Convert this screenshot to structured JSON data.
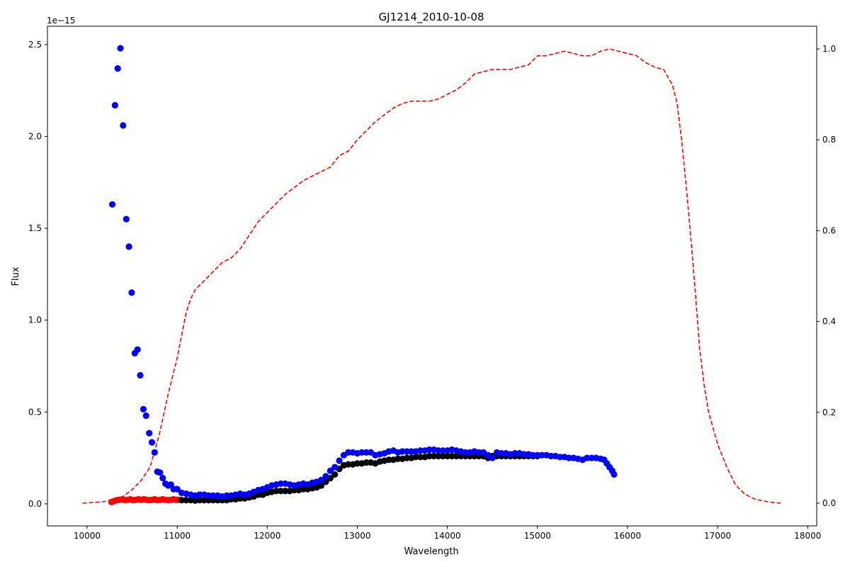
{
  "chart_data": {
    "type": "scatter",
    "title": "GJ1214_2010-10-08",
    "xlabel": "Wavelength",
    "ylabel": "Flux",
    "y_offset_text": "1e−15",
    "xlim": [
      9560,
      18100
    ],
    "ylim": [
      -0.12,
      2.6
    ],
    "y2lim": [
      -0.05,
      1.05
    ],
    "grid": false,
    "x_ticks": [
      {
        "value": 10000,
        "label": "10000"
      },
      {
        "value": 11000,
        "label": "11000"
      },
      {
        "value": 12000,
        "label": "12000"
      },
      {
        "value": 13000,
        "label": "13000"
      },
      {
        "value": 14000,
        "label": "14000"
      },
      {
        "value": 15000,
        "label": "15000"
      },
      {
        "value": 16000,
        "label": "16000"
      },
      {
        "value": 17000,
        "label": "17000"
      },
      {
        "value": 18000,
        "label": "18000"
      }
    ],
    "y_ticks": [
      {
        "value": 0.0,
        "label": "0.0"
      },
      {
        "value": 0.5,
        "label": "0.5"
      },
      {
        "value": 1.0,
        "label": "1.0"
      },
      {
        "value": 1.5,
        "label": "1.5"
      },
      {
        "value": 2.0,
        "label": "2.0"
      },
      {
        "value": 2.5,
        "label": "2.5"
      }
    ],
    "y2_ticks": [
      {
        "value": 0.0,
        "label": "0.0"
      },
      {
        "value": 0.2,
        "label": "0.2"
      },
      {
        "value": 0.4,
        "label": "0.4"
      },
      {
        "value": 0.6,
        "label": "0.6"
      },
      {
        "value": 0.8,
        "label": "0.8"
      },
      {
        "value": 1.0,
        "label": "1.0"
      }
    ],
    "colors": {
      "blue": "#0000ff",
      "black": "#000000",
      "red": "#ff0000",
      "curve": "#ff0000"
    },
    "series": [
      {
        "color": "#ff0000",
        "marker": "circle",
        "x": [
          10270,
          10300,
          10330,
          10360,
          10390,
          10420,
          10450,
          10480,
          10510,
          10540,
          10570,
          10600,
          10630,
          10660,
          10690,
          10720,
          10750,
          10780,
          10810,
          10840,
          10870,
          10900,
          10930,
          10960,
          10990,
          11020
        ],
        "y": [
          0.01,
          0.015,
          0.02,
          0.022,
          0.025,
          0.02,
          0.022,
          0.025,
          0.02,
          0.022,
          0.025,
          0.022,
          0.025,
          0.022,
          0.02,
          0.022,
          0.025,
          0.02,
          0.022,
          0.025,
          0.022,
          0.02,
          0.022,
          0.025,
          0.022,
          0.022
        ]
      },
      {
        "color": "#000000",
        "marker": "circle",
        "x": [
          11050,
          11100,
          11150,
          11200,
          11250,
          11300,
          11350,
          11400,
          11450,
          11500,
          11550,
          11600,
          11650,
          11700,
          11750,
          11800,
          11850,
          11900,
          11950,
          12000,
          12050,
          12100,
          12150,
          12200,
          12250,
          12300,
          12350,
          12400,
          12450,
          12500,
          12550,
          12600,
          12650,
          12700,
          12750,
          12800,
          12850,
          12900,
          12950,
          13000,
          13050,
          13100,
          13150,
          13200,
          13250,
          13300,
          13350,
          13400,
          13450,
          13500,
          13550,
          13600,
          13650,
          13700,
          13750,
          13800,
          13850,
          13900,
          13950,
          14000,
          14050,
          14100,
          14150,
          14200,
          14250,
          14300,
          14350,
          14400,
          14450,
          14500,
          14550,
          14600,
          14650,
          14700,
          14750,
          14800,
          14850,
          14900,
          14950,
          15000
        ],
        "y": [
          0.02,
          0.02,
          0.02,
          0.018,
          0.02,
          0.02,
          0.02,
          0.02,
          0.02,
          0.02,
          0.02,
          0.025,
          0.025,
          0.03,
          0.03,
          0.035,
          0.04,
          0.05,
          0.05,
          0.06,
          0.065,
          0.07,
          0.07,
          0.07,
          0.07,
          0.075,
          0.075,
          0.08,
          0.08,
          0.085,
          0.09,
          0.1,
          0.12,
          0.14,
          0.16,
          0.19,
          0.21,
          0.215,
          0.215,
          0.22,
          0.22,
          0.225,
          0.225,
          0.22,
          0.23,
          0.235,
          0.24,
          0.24,
          0.245,
          0.245,
          0.25,
          0.25,
          0.255,
          0.255,
          0.255,
          0.26,
          0.26,
          0.26,
          0.26,
          0.26,
          0.26,
          0.26,
          0.26,
          0.26,
          0.26,
          0.26,
          0.26,
          0.26,
          0.25,
          0.26,
          0.26,
          0.26,
          0.26,
          0.26,
          0.26,
          0.26,
          0.26,
          0.26,
          0.26,
          0.26
        ]
      },
      {
        "color": "#0000ff",
        "marker": "circle",
        "x": [
          10280,
          10310,
          10340,
          10370,
          10400,
          10435,
          10465,
          10495,
          10530,
          10560,
          10590,
          10625,
          10655,
          10690,
          10720,
          10750,
          10780,
          10810,
          10840,
          10870,
          10900,
          10930,
          10960,
          11000,
          11050,
          11100,
          11150,
          11200,
          11250,
          11300,
          11350,
          11400,
          11450,
          11500,
          11550,
          11600,
          11650,
          11700,
          11750,
          11800,
          11850,
          11900,
          11950,
          12000,
          12050,
          12100,
          12150,
          12200,
          12250,
          12300,
          12350,
          12400,
          12450,
          12500,
          12550,
          12600,
          12650,
          12700,
          12750,
          12800,
          12850,
          12900,
          12950,
          13000,
          13050,
          13100,
          13150,
          13200,
          13250,
          13300,
          13350,
          13400,
          13450,
          13500,
          13550,
          13600,
          13650,
          13700,
          13750,
          13800,
          13850,
          13900,
          13950,
          14000,
          14050,
          14100,
          14150,
          14200,
          14250,
          14300,
          14350,
          14400,
          14450,
          14500,
          14550,
          14600,
          14650,
          14700,
          14750,
          14800,
          14850,
          14900,
          14950,
          15000,
          15050,
          15100,
          15150,
          15200,
          15250,
          15300,
          15350,
          15400,
          15450,
          15500,
          15550,
          15600,
          15650,
          15700,
          15740,
          15770,
          15800,
          15830,
          15850
        ],
        "y": [
          1.63,
          2.17,
          2.37,
          2.48,
          2.06,
          1.55,
          1.4,
          1.15,
          0.82,
          0.84,
          0.7,
          0.515,
          0.48,
          0.385,
          0.335,
          0.28,
          0.175,
          0.17,
          0.14,
          0.11,
          0.1,
          0.105,
          0.08,
          0.08,
          0.06,
          0.055,
          0.05,
          0.045,
          0.05,
          0.05,
          0.045,
          0.045,
          0.045,
          0.04,
          0.045,
          0.045,
          0.05,
          0.055,
          0.05,
          0.055,
          0.065,
          0.075,
          0.08,
          0.09,
          0.1,
          0.105,
          0.11,
          0.11,
          0.105,
          0.1,
          0.105,
          0.11,
          0.105,
          0.115,
          0.12,
          0.13,
          0.15,
          0.18,
          0.2,
          0.235,
          0.265,
          0.28,
          0.28,
          0.275,
          0.28,
          0.28,
          0.28,
          0.265,
          0.27,
          0.275,
          0.285,
          0.29,
          0.28,
          0.285,
          0.285,
          0.285,
          0.285,
          0.29,
          0.29,
          0.295,
          0.295,
          0.29,
          0.29,
          0.29,
          0.295,
          0.29,
          0.285,
          0.28,
          0.28,
          0.285,
          0.28,
          0.28,
          0.265,
          0.25,
          0.28,
          0.275,
          0.275,
          0.27,
          0.275,
          0.275,
          0.27,
          0.27,
          0.265,
          0.265,
          0.265,
          0.265,
          0.26,
          0.26,
          0.255,
          0.255,
          0.25,
          0.25,
          0.245,
          0.24,
          0.25,
          0.25,
          0.25,
          0.245,
          0.24,
          0.22,
          0.2,
          0.18,
          0.16
        ]
      }
    ],
    "curve": {
      "axis": "right",
      "style": "dashed",
      "color": "#ff0000",
      "x": [
        9950,
        10100,
        10250,
        10400,
        10500,
        10600,
        10700,
        10800,
        10900,
        11000,
        11050,
        11100,
        11150,
        11200,
        11300,
        11400,
        11500,
        11600,
        11700,
        11800,
        11900,
        12000,
        12100,
        12200,
        12300,
        12400,
        12500,
        12600,
        12700,
        12800,
        12900,
        13000,
        13100,
        13200,
        13300,
        13400,
        13500,
        13600,
        13700,
        13800,
        13900,
        14000,
        14100,
        14200,
        14300,
        14400,
        14500,
        14600,
        14700,
        14800,
        14900,
        15000,
        15100,
        15200,
        15300,
        15400,
        15500,
        15600,
        15700,
        15800,
        15900,
        16000,
        16100,
        16200,
        16300,
        16400,
        16500,
        16550,
        16600,
        16650,
        16700,
        16750,
        16800,
        16850,
        16900,
        17000,
        17100,
        17200,
        17300,
        17400,
        17500,
        17600,
        17700
      ],
      "y": [
        0.0,
        0.002,
        0.005,
        0.015,
        0.03,
        0.05,
        0.08,
        0.15,
        0.24,
        0.32,
        0.37,
        0.42,
        0.45,
        0.47,
        0.49,
        0.51,
        0.53,
        0.54,
        0.56,
        0.59,
        0.62,
        0.64,
        0.66,
        0.68,
        0.695,
        0.71,
        0.72,
        0.73,
        0.74,
        0.765,
        0.775,
        0.8,
        0.82,
        0.84,
        0.855,
        0.87,
        0.88,
        0.885,
        0.885,
        0.885,
        0.89,
        0.9,
        0.91,
        0.925,
        0.945,
        0.95,
        0.955,
        0.955,
        0.955,
        0.96,
        0.965,
        0.985,
        0.985,
        0.99,
        0.995,
        0.99,
        0.985,
        0.985,
        0.995,
        1.0,
        0.995,
        0.99,
        0.985,
        0.97,
        0.96,
        0.955,
        0.92,
        0.88,
        0.8,
        0.7,
        0.59,
        0.47,
        0.34,
        0.26,
        0.2,
        0.13,
        0.08,
        0.04,
        0.02,
        0.01,
        0.005,
        0.002,
        0.0
      ]
    }
  }
}
